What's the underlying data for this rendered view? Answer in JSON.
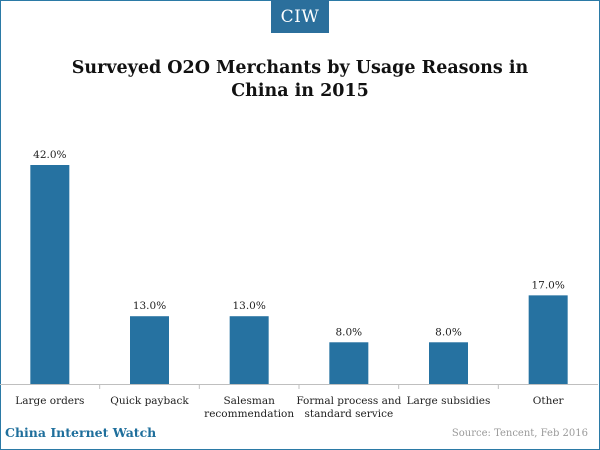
{
  "brand": {
    "logo_text": "CIW",
    "footer_text": "China Internet Watch",
    "source_text": "Source: Tencent, Feb 2016"
  },
  "colors": {
    "bar": "#2672a1",
    "accent": "#2b6f9c"
  },
  "chart_data": {
    "type": "bar",
    "title": "Surveyed O2O Merchants by Usage Reasons in China in 2015",
    "categories": [
      [
        "Large orders"
      ],
      [
        "Quick payback"
      ],
      [
        "Salesman",
        "recommendation"
      ],
      [
        "Formal process and",
        "standard service"
      ],
      [
        "Large subsidies"
      ],
      [
        "Other"
      ]
    ],
    "values": [
      42.0,
      13.0,
      13.0,
      8.0,
      8.0,
      17.0
    ],
    "value_labels": [
      "42.0%",
      "13.0%",
      "13.0%",
      "8.0%",
      "8.0%",
      "17.0%"
    ],
    "ylim": [
      0,
      45
    ],
    "grid": false,
    "legend": "none"
  }
}
